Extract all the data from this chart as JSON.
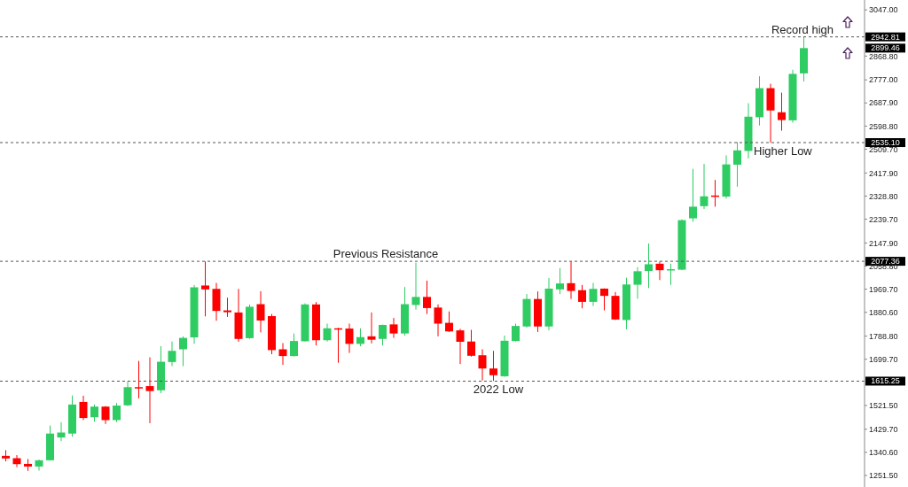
{
  "chart_data": {
    "type": "candlestick",
    "categories": [
      null,
      null,
      null,
      null,
      null,
      null,
      null,
      null,
      null,
      null,
      null,
      null,
      null,
      null,
      null,
      null,
      null,
      null,
      null,
      null,
      null,
      null,
      null,
      null,
      null,
      null,
      null,
      null,
      null,
      null,
      null,
      null,
      null,
      null,
      null,
      null,
      null,
      null,
      null,
      null,
      null,
      null,
      null,
      null,
      null,
      null,
      null,
      null,
      null,
      null,
      null,
      null,
      null,
      null,
      null,
      null,
      null,
      null,
      null,
      null,
      null,
      null,
      null,
      null,
      null,
      null,
      null,
      null,
      null,
      null,
      null,
      null,
      null,
      null,
      null,
      null,
      null,
      null
    ],
    "ohlc": [
      [
        1327,
        1349,
        1306,
        1317
      ],
      [
        1318,
        1330,
        1284,
        1295
      ],
      [
        1296,
        1315,
        1269,
        1286
      ],
      [
        1286,
        1313,
        1270,
        1310
      ],
      [
        1310,
        1444,
        1309,
        1413
      ],
      [
        1398,
        1457,
        1384,
        1417
      ],
      [
        1413,
        1560,
        1401,
        1525
      ],
      [
        1535,
        1559,
        1465,
        1473
      ],
      [
        1476,
        1525,
        1459,
        1517
      ],
      [
        1517,
        1519,
        1450,
        1465
      ],
      [
        1465,
        1531,
        1457,
        1521
      ],
      [
        1522,
        1615,
        1519,
        1592
      ],
      [
        1592,
        1693,
        1549,
        1587
      ],
      [
        1596,
        1707,
        1453,
        1577
      ],
      [
        1580,
        1750,
        1569,
        1690
      ],
      [
        1689,
        1768,
        1673,
        1732
      ],
      [
        1738,
        1788,
        1673,
        1782
      ],
      [
        1784,
        1986,
        1759,
        1977
      ],
      [
        1984,
        2077,
        1865,
        1969
      ],
      [
        1971,
        1994,
        1848,
        1886
      ],
      [
        1888,
        1937,
        1863,
        1881
      ],
      [
        1880,
        1971,
        1767,
        1778
      ],
      [
        1781,
        1911,
        1778,
        1902
      ],
      [
        1912,
        1962,
        1803,
        1849
      ],
      [
        1866,
        1874,
        1719,
        1735
      ],
      [
        1738,
        1762,
        1678,
        1712
      ],
      [
        1712,
        1799,
        1710,
        1770
      ],
      [
        1769,
        1915,
        1768,
        1911
      ],
      [
        1911,
        1920,
        1753,
        1773
      ],
      [
        1773,
        1837,
        1768,
        1819
      ],
      [
        1819,
        1821,
        1686,
        1814
      ],
      [
        1818,
        1837,
        1724,
        1759
      ],
      [
        1759,
        1819,
        1750,
        1785
      ],
      [
        1788,
        1880,
        1761,
        1775
      ],
      [
        1778,
        1833,
        1753,
        1832
      ],
      [
        1834,
        1859,
        1782,
        1799
      ],
      [
        1799,
        1978,
        1791,
        1912
      ],
      [
        1909,
        2072,
        1891,
        1940
      ],
      [
        1940,
        2003,
        1874,
        1897
      ],
      [
        1899,
        1911,
        1788,
        1837
      ],
      [
        1840,
        1884,
        1805,
        1807
      ],
      [
        1811,
        1817,
        1681,
        1767
      ],
      [
        1768,
        1813,
        1710,
        1713
      ],
      [
        1715,
        1738,
        1618,
        1664
      ],
      [
        1664,
        1732,
        1616,
        1638
      ],
      [
        1634,
        1791,
        1632,
        1771
      ],
      [
        1770,
        1837,
        1768,
        1828
      ],
      [
        1826,
        1951,
        1822,
        1932
      ],
      [
        1932,
        1961,
        1805,
        1826
      ],
      [
        1826,
        2013,
        1811,
        1972
      ],
      [
        1969,
        2051,
        1951,
        1992
      ],
      [
        1993,
        2077,
        1932,
        1963
      ],
      [
        1966,
        1986,
        1896,
        1921
      ],
      [
        1921,
        1994,
        1905,
        1971
      ],
      [
        1972,
        1973,
        1888,
        1944
      ],
      [
        1944,
        1959,
        1851,
        1853
      ],
      [
        1851,
        2014,
        1815,
        1988
      ],
      [
        1987,
        2055,
        1933,
        2039
      ],
      [
        2040,
        2146,
        1974,
        2066
      ],
      [
        2068,
        2077,
        2005,
        2043
      ],
      [
        2043,
        2068,
        1986,
        2047
      ],
      [
        2045,
        2239,
        2043,
        2236
      ],
      [
        2243,
        2434,
        2230,
        2288
      ],
      [
        2290,
        2453,
        2279,
        2328
      ],
      [
        2331,
        2391,
        2288,
        2327
      ],
      [
        2327,
        2486,
        2319,
        2451
      ],
      [
        2450,
        2537,
        2365,
        2505
      ],
      [
        2503,
        2687,
        2474,
        2635
      ],
      [
        2633,
        2791,
        2601,
        2745
      ],
      [
        2745,
        2762,
        2535.1,
        2659
      ],
      [
        2652,
        2728,
        2581,
        2622
      ],
      [
        2621,
        2816,
        2612,
        2800
      ],
      [
        2802,
        2942.81,
        2771,
        2899.46
      ],
      null,
      null,
      null,
      null,
      null
    ],
    "colors": [
      "#ff0000",
      "#ff0000",
      "#ff0000",
      "#2ecc63",
      "#2ecc63",
      "#2ecc63",
      "#2ecc63",
      "#ff0000",
      "#2ecc63",
      "#ff0000",
      "#2ecc63",
      "#2ecc63",
      "#ff0000",
      "#ff0000",
      "#2ecc63",
      "#2ecc63",
      "#2ecc63",
      "#2ecc63",
      "#ff0000",
      "#ff0000",
      "#ff0000",
      "#ff0000",
      "#2ecc63",
      "#ff0000",
      "#ff0000",
      "#ff0000",
      "#2ecc63",
      "#2ecc63",
      "#ff0000",
      "#2ecc63",
      "#ff0000",
      "#ff0000",
      "#2ecc63",
      "#ff0000",
      "#2ecc63",
      "#ff0000",
      "#2ecc63",
      "#2ecc63",
      "#ff0000",
      "#ff0000",
      "#ff0000",
      "#ff0000",
      "#ff0000",
      "#ff0000",
      "#ff0000",
      "#2ecc63",
      "#2ecc63",
      "#2ecc63",
      "#ff0000",
      "#2ecc63",
      "#2ecc63",
      "#ff0000",
      "#ff0000",
      "#2ecc63",
      "#ff0000",
      "#ff0000",
      "#2ecc63",
      "#2ecc63",
      "#2ecc63",
      "#ff0000",
      "#2ecc63",
      "#2ecc63",
      "#2ecc63",
      "#2ecc63",
      "#ff0000",
      "#2ecc63",
      "#2ecc63",
      "#2ecc63",
      "#2ecc63",
      "#ff0000",
      "#ff0000",
      "#2ecc63",
      "#2ecc63",
      null,
      null,
      null,
      null,
      null
    ],
    "ylim": [
      1207,
      3085
    ],
    "yticks": [
      {
        "value": 3047,
        "label": "3047.00"
      },
      {
        "value": 2868.8,
        "label": "2868.80"
      },
      {
        "value": 2777,
        "label": "2777.00"
      },
      {
        "value": 2687.9,
        "label": "2687.90"
      },
      {
        "value": 2598.8,
        "label": "2598.80"
      },
      {
        "value": 2509.7,
        "label": "2509.70"
      },
      {
        "value": 2417.9,
        "label": "2417.90"
      },
      {
        "value": 2328.8,
        "label": "2328.80"
      },
      {
        "value": 2239.7,
        "label": "2239.70"
      },
      {
        "value": 2147.9,
        "label": "2147.90"
      },
      {
        "value": 2058.8,
        "label": "2058.80"
      },
      {
        "value": 1969.7,
        "label": "1969.70"
      },
      {
        "value": 1880.6,
        "label": "1880.60"
      },
      {
        "value": 1788.8,
        "label": "1788.80"
      },
      {
        "value": 1699.7,
        "label": "1699.70"
      },
      {
        "value": 1521.5,
        "label": "1521.50"
      },
      {
        "value": 1429.7,
        "label": "1429.70"
      },
      {
        "value": 1340.6,
        "label": "1340.60"
      },
      {
        "value": 1251.5,
        "label": "1251.50"
      }
    ],
    "tick_labels": "y",
    "ref_lines": [
      {
        "axis": "y",
        "value": 2942.81,
        "label": "Record high",
        "line_style": "dashed",
        "color": "#555555"
      },
      {
        "axis": "y",
        "value": 2535.1,
        "label": "Higher Low",
        "line_style": "dashed",
        "color": "#555555"
      },
      {
        "axis": "y",
        "value": 2077.36,
        "label": "Previous Resistance",
        "line_style": "dashed",
        "color": "#555555"
      },
      {
        "axis": "y",
        "value": 1615.25,
        "label": "2022 Low",
        "line_style": "dashed",
        "color": "#555555"
      }
    ],
    "annotations": [
      "2942.81",
      "2535.10",
      "2077.36",
      "1615.25",
      "2899.46"
    ]
  }
}
